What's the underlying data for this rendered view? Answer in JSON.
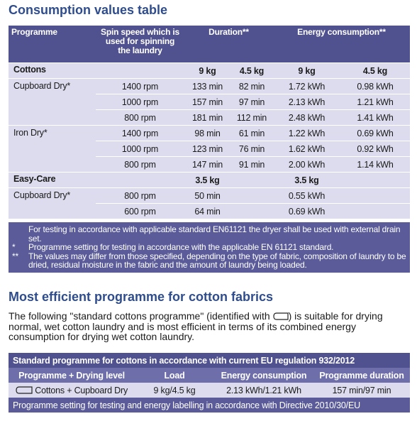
{
  "table1": {
    "title": "Consumption values table",
    "header": [
      "Programme",
      "Spin speed which is used for spinning the laundry",
      "Duration**",
      "Energy consumption**"
    ],
    "sections": [
      {
        "name": "Cottons",
        "duration_loads": [
          "9 kg",
          "4.5 kg"
        ],
        "energy_loads": [
          "9 kg",
          "4.5 kg"
        ],
        "programmes": [
          {
            "name": "Cupboard Dry*",
            "rows": [
              {
                "spin": "1400 rpm",
                "duration": [
                  "133 min",
                  "82 min"
                ],
                "energy": [
                  "1.72 kWh",
                  "0.98 kWh"
                ]
              },
              {
                "spin": "1000 rpm",
                "duration": [
                  "157 min",
                  "97 min"
                ],
                "energy": [
                  "2.13 kWh",
                  "1.21 kWh"
                ]
              },
              {
                "spin": "800 rpm",
                "duration": [
                  "181 min",
                  "112 min"
                ],
                "energy": [
                  "2.48 kWh",
                  "1.41 kWh"
                ]
              }
            ]
          },
          {
            "name": "Iron Dry*",
            "rows": [
              {
                "spin": "1400 rpm",
                "duration": [
                  "98 min",
                  "61 min"
                ],
                "energy": [
                  "1.22 kWh",
                  "0.69 kWh"
                ]
              },
              {
                "spin": "1000 rpm",
                "duration": [
                  "123 min",
                  "76 min"
                ],
                "energy": [
                  "1.62 kWh",
                  "0.92 kWh"
                ]
              },
              {
                "spin": "800 rpm",
                "duration": [
                  "147 min",
                  "91 min"
                ],
                "energy": [
                  "2.00 kWh",
                  "1.14 kWh"
                ]
              }
            ]
          }
        ]
      },
      {
        "name": "Easy-Care",
        "duration_loads": [
          "3.5 kg"
        ],
        "energy_loads": [
          "3.5 kg"
        ],
        "programmes": [
          {
            "name": "Cupboard Dry*",
            "rows": [
              {
                "spin": "800 rpm",
                "duration": [
                  "50 min"
                ],
                "energy": [
                  "0.55 kWh"
                ]
              },
              {
                "spin": "600 rpm",
                "duration": [
                  "64 min"
                ],
                "energy": [
                  "0.69 kWh"
                ]
              }
            ]
          }
        ]
      }
    ],
    "notes": [
      {
        "text": "For testing in accordance with applicable standard EN61121 the dryer shall be used with external drain set."
      },
      {
        "mark": "*",
        "text": "Programme setting for testing in accordance with the applicable EN 61121 standard."
      },
      {
        "mark": "**",
        "text": "The values may differ from those specified, depending on the type of fabric, composition of laundry to be dried, residual moisture in the fabric and the amount of laundry being loaded."
      }
    ]
  },
  "section2": {
    "title": "Most efficient programme for cotton fabrics",
    "paragraph_before": "The following \"standard cottons programme\" (identified with",
    "paragraph_after": ") is suitable for drying normal, wet cotton laundry and is most efficient in terms of its combined energy consumption for drying wet cotton laundry.",
    "table": {
      "title": "Standard programme for cottons in accordance with current EU regulation 932/2012",
      "header": [
        "Programme + Drying level",
        "Load",
        "Energy consumption",
        "Programme duration"
      ],
      "row": [
        "Cottons + Cupboard Dry",
        "9 kg/4.5 kg",
        "2.13 kWh/1.21 kWh",
        "157 min/97 min"
      ],
      "footer": "Programme setting for testing and energy labelling in accordance with Directive 2010/30/EU"
    }
  }
}
